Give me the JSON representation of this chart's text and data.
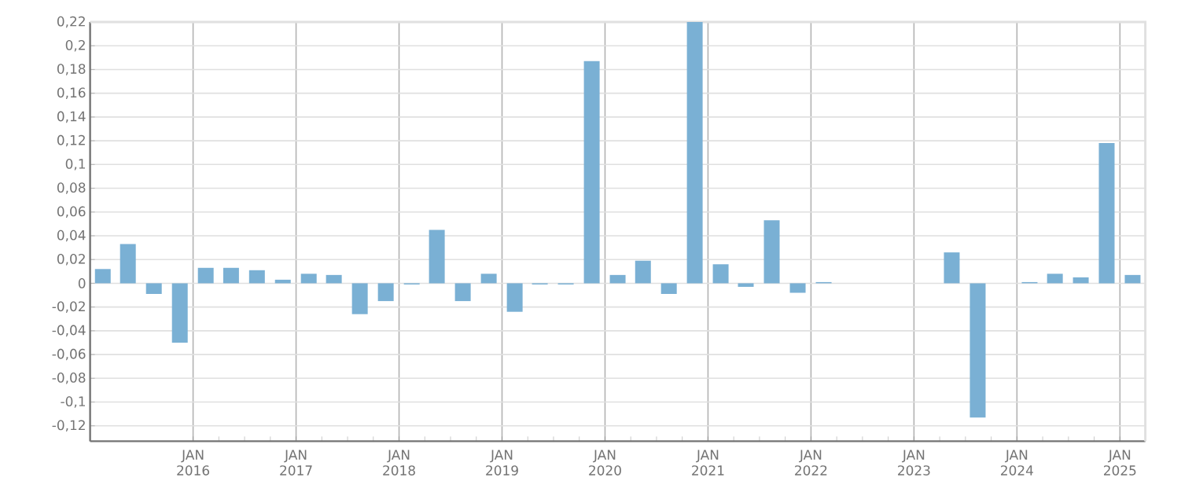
{
  "chart_data": {
    "type": "bar",
    "color": "#7ab0d4",
    "grid": true,
    "x": [
      "2015-02-15",
      "2015-05-15",
      "2015-08-15",
      "2015-11-15",
      "2016-02-15",
      "2016-05-15",
      "2016-08-15",
      "2016-11-15",
      "2017-02-15",
      "2017-05-15",
      "2017-08-15",
      "2017-11-15",
      "2018-02-15",
      "2018-05-15",
      "2018-08-15",
      "2018-11-15",
      "2019-02-15",
      "2019-05-15",
      "2019-08-15",
      "2019-11-15",
      "2020-02-15",
      "2020-05-15",
      "2020-08-15",
      "2020-11-15",
      "2021-02-15",
      "2021-05-15",
      "2021-08-15",
      "2021-11-15",
      "2022-02-15",
      "2022-05-15",
      "2022-08-15",
      "2022-11-15",
      "2023-02-15",
      "2023-05-15",
      "2023-08-15",
      "2023-11-15",
      "2024-02-15",
      "2024-05-15",
      "2024-08-15",
      "2024-11-15",
      "2025-02-15"
    ],
    "values": [
      0.012,
      0.033,
      -0.009,
      -0.05,
      0.013,
      0.013,
      0.011,
      0.003,
      0.008,
      0.007,
      -0.026,
      -0.015,
      -0.001,
      0.045,
      -0.015,
      0.008,
      -0.024,
      -0.001,
      -0.001,
      0.187,
      0.007,
      0.019,
      -0.009,
      0.22,
      0.016,
      -0.003,
      0.053,
      -0.008,
      0.001,
      null,
      null,
      null,
      null,
      0.026,
      -0.113,
      null,
      0.001,
      0.008,
      0.005,
      0.118,
      0.007
    ],
    "xlim": [
      "2015-01-01",
      "2025-04-01"
    ],
    "xticks": [
      {
        "value": "2016-01-01",
        "label": "JAN 2016"
      },
      {
        "value": "2017-01-01",
        "label": "JAN 2017"
      },
      {
        "value": "2018-01-01",
        "label": "JAN 2018"
      },
      {
        "value": "2019-01-01",
        "label": "JAN 2019"
      },
      {
        "value": "2020-01-01",
        "label": "JAN 2020"
      },
      {
        "value": "2021-01-01",
        "label": "JAN 2021"
      },
      {
        "value": "2022-01-01",
        "label": "JAN 2022"
      },
      {
        "value": "2023-01-01",
        "label": "JAN 2023"
      },
      {
        "value": "2024-01-01",
        "label": "JAN 2024"
      },
      {
        "value": "2025-01-01",
        "label": "JAN 2025"
      }
    ],
    "ylim": [
      -0.133,
      0.22
    ],
    "yticks": [
      {
        "value": -0.12,
        "label": "-0,12"
      },
      {
        "value": -0.1,
        "label": "-0,1"
      },
      {
        "value": -0.08,
        "label": "-0,08"
      },
      {
        "value": -0.06,
        "label": "-0,06"
      },
      {
        "value": -0.04,
        "label": "-0,04"
      },
      {
        "value": -0.02,
        "label": "-0,02"
      },
      0,
      {
        "value": 0.02,
        "label": "0,02"
      },
      {
        "value": 0.04,
        "label": "0,04"
      },
      {
        "value": 0.06,
        "label": "0,06"
      },
      {
        "value": 0.08,
        "label": "0,08"
      },
      {
        "value": 0.1,
        "label": "0,1"
      },
      {
        "value": 0.12,
        "label": "0,12"
      },
      {
        "value": 0.14,
        "label": "0,14"
      },
      {
        "value": 0.16,
        "label": "0,16"
      },
      {
        "value": 0.18,
        "label": "0,18"
      },
      {
        "value": 0.2,
        "label": "0,2"
      },
      {
        "value": 0.22,
        "label": "0,22"
      }
    ]
  }
}
